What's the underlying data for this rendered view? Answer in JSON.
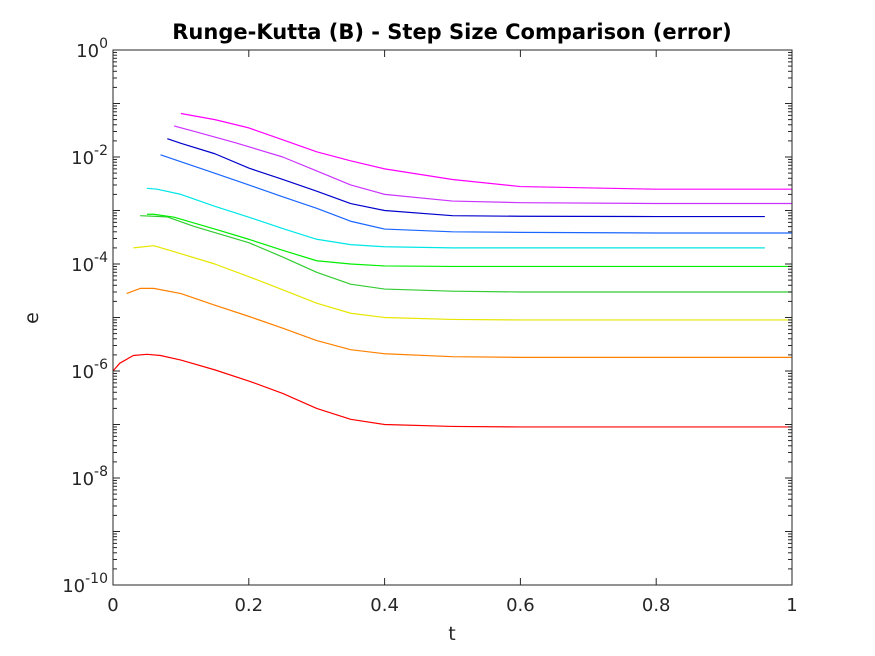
{
  "chart_data": {
    "type": "line",
    "title": "Runge-Kutta (B) - Step Size Comparison (error)",
    "xlabel": "t",
    "ylabel": "e",
    "xlim": [
      0,
      1
    ],
    "ylim": [
      1e-10,
      1
    ],
    "yscale": "log",
    "grid": false,
    "legend": "none",
    "x_ticks": [
      {
        "value": 0,
        "label": "0"
      },
      {
        "value": 0.2,
        "label": "0.2"
      },
      {
        "value": 0.4,
        "label": "0.4"
      },
      {
        "value": 0.6,
        "label": "0.6"
      },
      {
        "value": 0.8,
        "label": "0.8"
      },
      {
        "value": 1,
        "label": "1"
      }
    ],
    "y_ticks": [
      {
        "value": 1e-10,
        "base": "10",
        "exp": "-10"
      },
      {
        "value": 1e-08,
        "base": "10",
        "exp": "-8"
      },
      {
        "value": 1e-06,
        "base": "10",
        "exp": "-6"
      },
      {
        "value": 0.0001,
        "base": "10",
        "exp": "-4"
      },
      {
        "value": 0.01,
        "base": "10",
        "exp": "-2"
      },
      {
        "value": 1,
        "base": "10",
        "exp": "0"
      }
    ],
    "series": [
      {
        "color": "#ff0000",
        "points": [
          [
            0.0,
            1e-06
          ],
          [
            0.01,
            1.4e-06
          ],
          [
            0.03,
            1.95e-06
          ],
          [
            0.05,
            2.05e-06
          ],
          [
            0.07,
            1.95e-06
          ],
          [
            0.1,
            1.6e-06
          ],
          [
            0.15,
            1.05e-06
          ],
          [
            0.2,
            6.5e-07
          ],
          [
            0.25,
            3.8e-07
          ],
          [
            0.3,
            2e-07
          ],
          [
            0.35,
            1.25e-07
          ],
          [
            0.4,
            1e-07
          ],
          [
            0.5,
            9.2e-08
          ],
          [
            0.6,
            9e-08
          ],
          [
            0.8,
            9e-08
          ],
          [
            1.0,
            9e-08
          ]
        ]
      },
      {
        "color": "#ff8000",
        "points": [
          [
            0.02,
            2.8e-05
          ],
          [
            0.04,
            3.5e-05
          ],
          [
            0.06,
            3.5e-05
          ],
          [
            0.1,
            2.8e-05
          ],
          [
            0.15,
            1.7e-05
          ],
          [
            0.2,
            1.05e-05
          ],
          [
            0.25,
            6.3e-06
          ],
          [
            0.3,
            3.7e-06
          ],
          [
            0.35,
            2.5e-06
          ],
          [
            0.4,
            2.1e-06
          ],
          [
            0.5,
            1.85e-06
          ],
          [
            0.6,
            1.8e-06
          ],
          [
            0.8,
            1.8e-06
          ],
          [
            1.0,
            1.8e-06
          ]
        ]
      },
      {
        "color": "#e6e600",
        "points": [
          [
            0.03,
            0.0002
          ],
          [
            0.06,
            0.00022
          ],
          [
            0.09,
            0.00017
          ],
          [
            0.15,
            0.0001
          ],
          [
            0.2,
            5.8e-05
          ],
          [
            0.25,
            3.3e-05
          ],
          [
            0.3,
            1.85e-05
          ],
          [
            0.35,
            1.2e-05
          ],
          [
            0.4,
            1e-05
          ],
          [
            0.5,
            9.2e-06
          ],
          [
            0.6,
            9e-06
          ],
          [
            0.8,
            9e-06
          ],
          [
            1.0,
            9e-06
          ]
        ]
      },
      {
        "color": "#33cc33",
        "points": [
          [
            0.04,
            0.0008
          ],
          [
            0.08,
            0.00076
          ],
          [
            0.12,
            0.0005
          ],
          [
            0.2,
            0.00025
          ],
          [
            0.25,
            0.000135
          ],
          [
            0.3,
            7e-05
          ],
          [
            0.35,
            4.2e-05
          ],
          [
            0.4,
            3.4e-05
          ],
          [
            0.5,
            3.1e-05
          ],
          [
            0.6,
            3e-05
          ],
          [
            0.8,
            3e-05
          ],
          [
            1.0,
            3e-05
          ]
        ]
      },
      {
        "color": "#00ee00",
        "points": [
          [
            0.05,
            0.00085
          ],
          [
            0.06,
            0.00085
          ],
          [
            0.09,
            0.00075
          ],
          [
            0.15,
            0.00045
          ],
          [
            0.2,
            0.00029
          ],
          [
            0.25,
            0.00018
          ],
          [
            0.3,
            0.000115
          ],
          [
            0.35,
            0.0001
          ],
          [
            0.4,
            9.2e-05
          ],
          [
            0.5,
            9e-05
          ],
          [
            0.6,
            9e-05
          ],
          [
            0.8,
            9e-05
          ],
          [
            1.0,
            9e-05
          ]
        ]
      },
      {
        "color": "#00e6e6",
        "points": [
          [
            0.05,
            0.0026
          ],
          [
            0.065,
            0.0025
          ],
          [
            0.1,
            0.002
          ],
          [
            0.15,
            0.0012
          ],
          [
            0.2,
            0.00075
          ],
          [
            0.25,
            0.00046
          ],
          [
            0.3,
            0.00029
          ],
          [
            0.35,
            0.00023
          ],
          [
            0.4,
            0.00021
          ],
          [
            0.5,
            0.0002
          ],
          [
            0.6,
            0.0002
          ],
          [
            0.8,
            0.0002
          ],
          [
            0.96,
            0.0002
          ]
        ]
      },
      {
        "color": "#1a66ff",
        "points": [
          [
            0.07,
            0.011
          ],
          [
            0.09,
            0.009
          ],
          [
            0.14,
            0.0055
          ],
          [
            0.2,
            0.003
          ],
          [
            0.25,
            0.0018
          ],
          [
            0.3,
            0.0011
          ],
          [
            0.35,
            0.00063
          ],
          [
            0.4,
            0.00045
          ],
          [
            0.5,
            0.0004
          ],
          [
            0.6,
            0.00039
          ],
          [
            0.8,
            0.00038
          ],
          [
            1.0,
            0.00038
          ]
        ]
      },
      {
        "color": "#0000cc",
        "points": [
          [
            0.08,
            0.022
          ],
          [
            0.1,
            0.018
          ],
          [
            0.15,
            0.0115
          ],
          [
            0.2,
            0.0062
          ],
          [
            0.25,
            0.0038
          ],
          [
            0.3,
            0.0023
          ],
          [
            0.35,
            0.00135
          ],
          [
            0.4,
            0.001
          ],
          [
            0.5,
            0.0008
          ],
          [
            0.6,
            0.00078
          ],
          [
            0.8,
            0.00077
          ],
          [
            0.96,
            0.00077
          ]
        ]
      },
      {
        "color": "#cc33ff",
        "points": [
          [
            0.09,
            0.038
          ],
          [
            0.12,
            0.03
          ],
          [
            0.18,
            0.0185
          ],
          [
            0.25,
            0.01
          ],
          [
            0.3,
            0.0055
          ],
          [
            0.35,
            0.003
          ],
          [
            0.4,
            0.002
          ],
          [
            0.5,
            0.0015
          ],
          [
            0.6,
            0.0014
          ],
          [
            0.8,
            0.00135
          ],
          [
            1.0,
            0.00135
          ]
        ]
      },
      {
        "color": "#ff00ff",
        "points": [
          [
            0.1,
            0.065
          ],
          [
            0.15,
            0.05
          ],
          [
            0.2,
            0.035
          ],
          [
            0.25,
            0.021
          ],
          [
            0.3,
            0.0125
          ],
          [
            0.35,
            0.0085
          ],
          [
            0.4,
            0.006
          ],
          [
            0.5,
            0.0038
          ],
          [
            0.6,
            0.0028
          ],
          [
            0.8,
            0.0025
          ],
          [
            1.0,
            0.0025
          ]
        ]
      }
    ]
  }
}
